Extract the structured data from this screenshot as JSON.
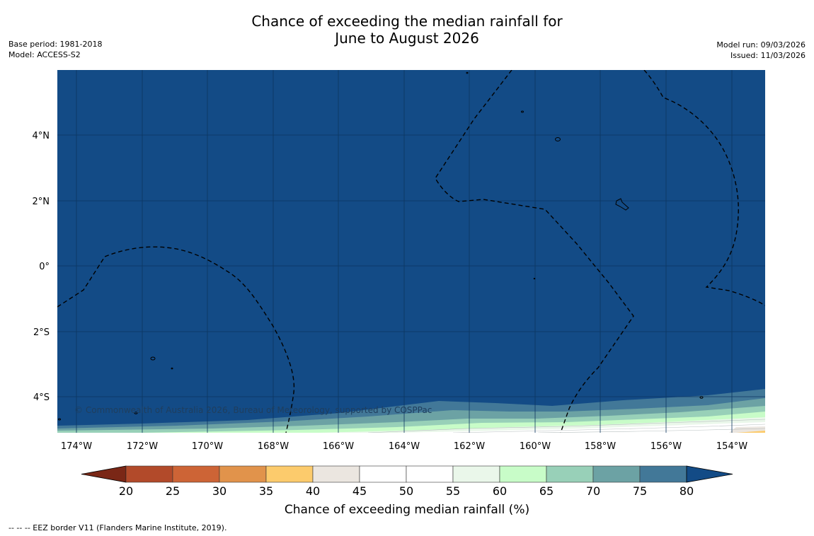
{
  "title": {
    "line1": "Chance of exceeding the median rainfall for",
    "line2": "June to August 2026"
  },
  "meta_left": {
    "base_period": "Base period: 1981-2018",
    "model": "Model: ACCESS-S2"
  },
  "meta_right": {
    "model_run": "Model run: 09/03/2026",
    "issued": "Issued: 11/03/2026"
  },
  "map": {
    "background_color": "#134b86",
    "lat_labels": [
      "4°N",
      "2°N",
      "0°",
      "2°S",
      "4°S"
    ],
    "lon_labels": [
      "174°W",
      "172°W",
      "170°W",
      "168°W",
      "166°W",
      "164°W",
      "162°W",
      "160°W",
      "158°W",
      "156°W",
      "154°W"
    ],
    "copyright": "© Commonwealth of Australia 2026, Bureau of Meteorology, supported by COSPPac"
  },
  "colorbar": {
    "ticks": [
      "20",
      "25",
      "30",
      "35",
      "40",
      "45",
      "50",
      "55",
      "60",
      "65",
      "70",
      "75",
      "80"
    ],
    "colors": [
      "#7a2716",
      "#b24a2a",
      "#cd6436",
      "#e1934b",
      "#fccb6c",
      "#ebe6e0",
      "#ffffff",
      "#ffffff",
      "#eaf7ea",
      "#c8fcc8",
      "#98d0b8",
      "#6ca2a4",
      "#427898",
      "#134b86"
    ],
    "title": "Chance of exceeding median rainfall (%)"
  },
  "footnote": "--  --  -- EEZ border V11 (Flanders Marine Institute, 2019)."
}
